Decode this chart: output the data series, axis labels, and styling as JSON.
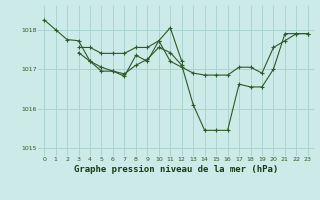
{
  "background_color": "#cceae7",
  "grid_color": "#aad4d0",
  "line_color": "#2d5a27",
  "marker_color": "#2d5a27",
  "title": "Graphe pression niveau de la mer (hPa)",
  "title_fontsize": 6.5,
  "xlim": [
    -0.5,
    23.5
  ],
  "ylim": [
    1014.8,
    1018.6
  ],
  "yticks": [
    1015,
    1016,
    1017,
    1018
  ],
  "xticks": [
    0,
    1,
    2,
    3,
    4,
    5,
    6,
    7,
    8,
    9,
    10,
    11,
    12,
    13,
    14,
    15,
    16,
    17,
    18,
    19,
    20,
    21,
    22,
    23
  ],
  "series": [
    {
      "x": [
        0,
        1,
        2,
        3,
        4,
        5,
        6,
        7,
        8,
        9,
        10,
        11,
        12
      ],
      "y": [
        1018.25,
        1018.0,
        1017.75,
        1017.72,
        1017.2,
        1016.95,
        1016.95,
        1016.82,
        1017.35,
        1017.2,
        1017.72,
        1018.05,
        1017.2
      ]
    },
    {
      "x": [
        3,
        4,
        5,
        6,
        7,
        8,
        9,
        10,
        11,
        12,
        13,
        14,
        15,
        16,
        17,
        18,
        19,
        20,
        21,
        22,
        23
      ],
      "y": [
        1017.55,
        1017.55,
        1017.4,
        1017.4,
        1017.4,
        1017.55,
        1017.55,
        1017.72,
        1017.2,
        1017.05,
        1016.9,
        1016.85,
        1016.85,
        1016.85,
        1017.05,
        1017.05,
        1016.9,
        1017.55,
        1017.72,
        1017.9,
        1017.9
      ]
    },
    {
      "x": [
        3,
        4,
        5,
        6,
        7,
        8,
        9,
        10,
        11,
        12,
        13,
        14,
        15,
        16,
        17,
        18,
        19,
        20,
        21,
        22,
        23
      ],
      "y": [
        1017.42,
        1017.2,
        1017.05,
        1016.95,
        1016.88,
        1017.1,
        1017.25,
        1017.55,
        1017.42,
        1017.1,
        1016.1,
        1015.45,
        1015.45,
        1015.45,
        1016.62,
        1016.55,
        1016.55,
        1017.0,
        1017.9,
        1017.9,
        1017.9
      ]
    }
  ]
}
